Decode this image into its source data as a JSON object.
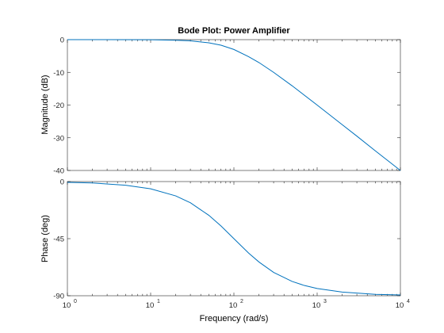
{
  "chart_data": {
    "type": "line",
    "title": "Bode Plot: Power Amplifier",
    "xlabel": "Frequency  (rad/s)",
    "xscale": "log",
    "xlim": [
      1,
      10000
    ],
    "x_ticks": [
      {
        "base": "10",
        "exp": "0"
      },
      {
        "base": "10",
        "exp": "1"
      },
      {
        "base": "10",
        "exp": "2"
      },
      {
        "base": "10",
        "exp": "3"
      },
      {
        "base": "10",
        "exp": "4"
      }
    ],
    "grid": false,
    "color": "#0072BD",
    "panels": [
      {
        "ylabel": "Magnitude (dB)",
        "ylim": [
          -40,
          0
        ],
        "y_ticks": [
          "0",
          "-10",
          "-20",
          "-30",
          "-40"
        ],
        "y_tick_values": [
          0,
          -10,
          -20,
          -30,
          -40
        ],
        "series": [
          {
            "x": [
              1,
              3,
              10,
              20,
              30,
              50,
              70,
              100,
              150,
              200,
              300,
              500,
              1000,
              2000,
              3000,
              5000,
              10000
            ],
            "y": [
              0,
              -0.004,
              -0.04,
              -0.17,
              -0.37,
              -0.97,
              -1.7,
              -3.0,
              -5.2,
              -7.0,
              -10.0,
              -14.1,
              -20.0,
              -26.0,
              -29.5,
              -34.0,
              -40.0
            ]
          }
        ]
      },
      {
        "ylabel": "Phase (deg)",
        "ylim": [
          -90,
          0
        ],
        "y_ticks": [
          "0",
          "-45",
          "-90"
        ],
        "y_tick_values": [
          0,
          -45,
          -90
        ],
        "series": [
          {
            "x": [
              1,
              2,
              5,
              10,
              20,
              30,
              50,
              70,
              100,
              150,
              200,
              300,
              500,
              700,
              1000,
              2000,
              5000,
              10000
            ],
            "y": [
              -0.6,
              -1.1,
              -2.9,
              -5.7,
              -11.3,
              -16.7,
              -26.6,
              -35.0,
              -45.0,
              -56.3,
              -63.4,
              -71.6,
              -78.7,
              -81.9,
              -84.3,
              -87.1,
              -88.9,
              -89.4
            ]
          }
        ]
      }
    ]
  }
}
